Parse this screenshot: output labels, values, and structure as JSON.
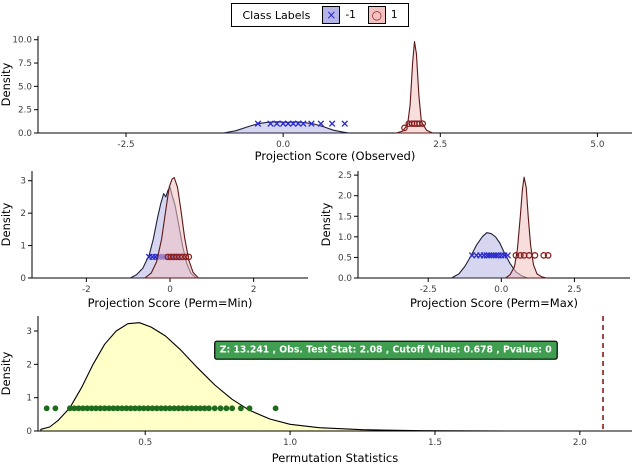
{
  "legend": {
    "title": "Class Labels",
    "items": [
      {
        "label": "-1",
        "fill": "#b4b4e6",
        "border": "#000000",
        "marker": "×",
        "marker_color": "#2929cc"
      },
      {
        "label": "1",
        "fill": "#f3c1c1",
        "border": "#000000",
        "marker": "○",
        "marker_color": "#8b2020"
      }
    ]
  },
  "chart_data": [
    {
      "id": "observed",
      "type": "area",
      "subtype": "density",
      "xlabel": "Projection Score (Observed)",
      "ylabel": "Density",
      "xlim": [
        -3.9,
        5.55
      ],
      "ylim": [
        0,
        10.4
      ],
      "xticks": [
        [
          -2.5,
          "-2.5"
        ],
        [
          0,
          "0.0"
        ],
        [
          2.5,
          "2.5"
        ],
        [
          5,
          "5.0"
        ]
      ],
      "yticks": [
        [
          0,
          "0.0"
        ],
        [
          2.5,
          "2.5"
        ],
        [
          5,
          "5.0"
        ],
        [
          7.5,
          "7.5"
        ],
        [
          10,
          "10.0"
        ]
      ],
      "series": [
        {
          "name": "-1",
          "fill": "#b4b4e6",
          "stroke": "#20203a",
          "marker": "x",
          "marker_color": "#2929cc",
          "curve": [
            [
              -0.95,
              0
            ],
            [
              -0.75,
              0.25
            ],
            [
              -0.55,
              0.7
            ],
            [
              -0.4,
              1.0
            ],
            [
              -0.25,
              1.15
            ],
            [
              -0.1,
              1.2
            ],
            [
              0.05,
              1.15
            ],
            [
              0.2,
              1.2
            ],
            [
              0.35,
              1.1
            ],
            [
              0.5,
              0.95
            ],
            [
              0.65,
              0.65
            ],
            [
              0.8,
              0.3
            ],
            [
              0.95,
              0.1
            ],
            [
              1.05,
              0
            ]
          ],
          "points": [
            [
              -0.4,
              1.0
            ],
            [
              -0.2,
              1.0
            ],
            [
              -0.1,
              1.0
            ],
            [
              0.0,
              1.0
            ],
            [
              0.08,
              1.0
            ],
            [
              0.16,
              1.0
            ],
            [
              0.24,
              1.0
            ],
            [
              0.32,
              1.0
            ],
            [
              0.45,
              1.0
            ],
            [
              0.6,
              1.0
            ],
            [
              0.78,
              1.0
            ],
            [
              0.98,
              1.0
            ]
          ]
        },
        {
          "name": "1",
          "fill": "#f3c1c1",
          "stroke": "#5c1616",
          "marker": "o",
          "marker_color": "#8b2020",
          "curve": [
            [
              1.8,
              0
            ],
            [
              1.9,
              0.2
            ],
            [
              1.98,
              0.9
            ],
            [
              2.02,
              3.0
            ],
            [
              2.06,
              7.5
            ],
            [
              2.09,
              9.8
            ],
            [
              2.12,
              8.5
            ],
            [
              2.16,
              4.0
            ],
            [
              2.2,
              1.2
            ],
            [
              2.28,
              0.3
            ],
            [
              2.38,
              0
            ]
          ],
          "points": [
            [
              1.93,
              0.55
            ],
            [
              2.0,
              1.0
            ],
            [
              2.05,
              1.0
            ],
            [
              2.09,
              1.0
            ],
            [
              2.13,
              1.0
            ],
            [
              2.17,
              1.0
            ],
            [
              2.22,
              1.0
            ]
          ]
        }
      ]
    },
    {
      "id": "perm_min",
      "type": "area",
      "subtype": "density",
      "xlabel": "Projection Score (Perm=Min)",
      "ylabel": "Density",
      "xlim": [
        -3.3,
        3.3
      ],
      "ylim": [
        0,
        3.3
      ],
      "xticks": [
        [
          -2,
          "-2"
        ],
        [
          0,
          "0"
        ],
        [
          2,
          "2"
        ]
      ],
      "yticks": [
        [
          0,
          "0"
        ],
        [
          1,
          "1"
        ],
        [
          2,
          "2"
        ],
        [
          3,
          "3"
        ]
      ],
      "series": [
        {
          "name": "-1",
          "fill": "#b4b4e6",
          "stroke": "#20203a",
          "marker": "x",
          "marker_color": "#2929cc",
          "curve": [
            [
              -0.95,
              0
            ],
            [
              -0.8,
              0.1
            ],
            [
              -0.65,
              0.3
            ],
            [
              -0.5,
              0.7
            ],
            [
              -0.4,
              1.2
            ],
            [
              -0.3,
              1.85
            ],
            [
              -0.22,
              2.3
            ],
            [
              -0.15,
              2.6
            ],
            [
              -0.1,
              2.5
            ],
            [
              -0.05,
              2.7
            ],
            [
              0,
              2.8
            ],
            [
              0.05,
              2.55
            ],
            [
              0.12,
              2.25
            ],
            [
              0.2,
              1.7
            ],
            [
              0.3,
              1.0
            ],
            [
              0.4,
              0.45
            ],
            [
              0.5,
              0.15
            ],
            [
              0.62,
              0
            ]
          ],
          "points": [
            [
              -0.5,
              0.65
            ],
            [
              -0.42,
              0.65
            ],
            [
              -0.35,
              0.65
            ],
            [
              -0.28,
              0.65
            ],
            [
              -0.22,
              0.65
            ],
            [
              -0.16,
              0.65
            ],
            [
              -0.1,
              0.65
            ],
            [
              -0.04,
              0.65
            ],
            [
              0.02,
              0.65
            ],
            [
              0.08,
              0.65
            ],
            [
              0.15,
              0.65
            ],
            [
              0.22,
              0.65
            ]
          ]
        },
        {
          "name": "1",
          "fill": "#f3c1c1",
          "stroke": "#5c1616",
          "marker": "o",
          "marker_color": "#8b2020",
          "curve": [
            [
              -0.6,
              0
            ],
            [
              -0.45,
              0.15
            ],
            [
              -0.32,
              0.5
            ],
            [
              -0.2,
              1.2
            ],
            [
              -0.1,
              2.1
            ],
            [
              -0.02,
              2.8
            ],
            [
              0.05,
              3.05
            ],
            [
              0.1,
              3.1
            ],
            [
              0.18,
              2.8
            ],
            [
              0.26,
              2.1
            ],
            [
              0.35,
              1.25
            ],
            [
              0.45,
              0.55
            ],
            [
              0.55,
              0.18
            ],
            [
              0.68,
              0
            ]
          ],
          "points": [
            [
              -0.05,
              0.65
            ],
            [
              0.02,
              0.65
            ],
            [
              0.09,
              0.65
            ],
            [
              0.16,
              0.65
            ],
            [
              0.23,
              0.65
            ],
            [
              0.3,
              0.65
            ],
            [
              0.38,
              0.65
            ],
            [
              0.45,
              0.65
            ]
          ]
        }
      ]
    },
    {
      "id": "perm_max",
      "type": "area",
      "subtype": "density",
      "xlabel": "Projection Score (Perm=Max)",
      "ylabel": "Density",
      "xlim": [
        -4.9,
        4.4
      ],
      "ylim": [
        0,
        2.6
      ],
      "xticks": [
        [
          -2.5,
          "-2.5"
        ],
        [
          0,
          "0.0"
        ],
        [
          2.5,
          "2.5"
        ]
      ],
      "yticks": [
        [
          0,
          "0.0"
        ],
        [
          0.5,
          "0.5"
        ],
        [
          1,
          "1.0"
        ],
        [
          1.5,
          "1.5"
        ],
        [
          2,
          "2.0"
        ],
        [
          2.5,
          "2.5"
        ]
      ],
      "series": [
        {
          "name": "-1",
          "fill": "#b4b4e6",
          "stroke": "#20203a",
          "marker": "x",
          "marker_color": "#2929cc",
          "curve": [
            [
              -1.7,
              0
            ],
            [
              -1.45,
              0.1
            ],
            [
              -1.25,
              0.28
            ],
            [
              -1.05,
              0.52
            ],
            [
              -0.85,
              0.8
            ],
            [
              -0.65,
              1.0
            ],
            [
              -0.5,
              1.1
            ],
            [
              -0.35,
              1.08
            ],
            [
              -0.2,
              1.0
            ],
            [
              -0.05,
              0.85
            ],
            [
              0.1,
              0.62
            ],
            [
              0.3,
              0.35
            ],
            [
              0.5,
              0.15
            ],
            [
              0.7,
              0.05
            ],
            [
              0.9,
              0
            ]
          ],
          "points": [
            [
              -1.0,
              0.55
            ],
            [
              -0.85,
              0.55
            ],
            [
              -0.72,
              0.55
            ],
            [
              -0.6,
              0.55
            ],
            [
              -0.5,
              0.55
            ],
            [
              -0.42,
              0.55
            ],
            [
              -0.34,
              0.55
            ],
            [
              -0.26,
              0.55
            ],
            [
              -0.18,
              0.55
            ],
            [
              -0.1,
              0.55
            ],
            [
              0.0,
              0.55
            ],
            [
              0.1,
              0.55
            ],
            [
              0.22,
              0.55
            ]
          ]
        },
        {
          "name": "1",
          "fill": "#f3c1c1",
          "stroke": "#5c1616",
          "marker": "o",
          "marker_color": "#8b2020",
          "curve": [
            [
              0.15,
              0
            ],
            [
              0.3,
              0.08
            ],
            [
              0.45,
              0.28
            ],
            [
              0.55,
              0.7
            ],
            [
              0.65,
              1.5
            ],
            [
              0.72,
              2.15
            ],
            [
              0.78,
              2.45
            ],
            [
              0.85,
              2.2
            ],
            [
              0.92,
              1.5
            ],
            [
              1.0,
              0.8
            ],
            [
              1.1,
              0.32
            ],
            [
              1.22,
              0.1
            ],
            [
              1.38,
              0.03
            ],
            [
              1.55,
              0
            ]
          ],
          "points": [
            [
              0.5,
              0.55
            ],
            [
              0.65,
              0.55
            ],
            [
              0.78,
              0.55
            ],
            [
              0.95,
              0.55
            ],
            [
              1.15,
              0.55
            ],
            [
              1.45,
              0.55
            ],
            [
              1.6,
              0.55
            ]
          ]
        }
      ]
    },
    {
      "id": "perm_stat",
      "type": "area",
      "subtype": "density",
      "xlabel": "Permutation Statistics",
      "ylabel": "Density",
      "xlim": [
        0.13,
        2.18
      ],
      "ylim": [
        0,
        3.45
      ],
      "xticks": [
        [
          0.5,
          "0.5"
        ],
        [
          1,
          "1.0"
        ],
        [
          1.5,
          "1.5"
        ],
        [
          2,
          "2.0"
        ]
      ],
      "yticks": [
        [
          0,
          "0"
        ],
        [
          1,
          "1"
        ],
        [
          2,
          "2"
        ],
        [
          3,
          "3"
        ]
      ],
      "series": [
        {
          "name": "permutation-density",
          "fill": "#ffffc2",
          "stroke": "#000000",
          "fill_opacity": 0.9,
          "marker": "dot",
          "marker_color": "#1e6b1e",
          "curve": [
            [
              0.14,
              0.05
            ],
            [
              0.17,
              0.12
            ],
            [
              0.2,
              0.32
            ],
            [
              0.24,
              0.7
            ],
            [
              0.28,
              1.3
            ],
            [
              0.32,
              2.0
            ],
            [
              0.36,
              2.6
            ],
            [
              0.4,
              3.0
            ],
            [
              0.44,
              3.22
            ],
            [
              0.48,
              3.25
            ],
            [
              0.52,
              3.12
            ],
            [
              0.57,
              2.85
            ],
            [
              0.62,
              2.45
            ],
            [
              0.68,
              1.9
            ],
            [
              0.74,
              1.38
            ],
            [
              0.8,
              0.95
            ],
            [
              0.86,
              0.62
            ],
            [
              0.93,
              0.36
            ],
            [
              1.0,
              0.2
            ],
            [
              1.1,
              0.1
            ],
            [
              1.25,
              0.04
            ],
            [
              1.45,
              0.01
            ],
            [
              1.75,
              0
            ]
          ],
          "points_x": [
            0.16,
            0.19,
            0.24,
            0.255,
            0.27,
            0.285,
            0.3,
            0.315,
            0.33,
            0.345,
            0.36,
            0.375,
            0.39,
            0.405,
            0.42,
            0.435,
            0.45,
            0.465,
            0.48,
            0.495,
            0.51,
            0.525,
            0.54,
            0.555,
            0.57,
            0.585,
            0.6,
            0.615,
            0.63,
            0.645,
            0.66,
            0.675,
            0.69,
            0.705,
            0.72,
            0.74,
            0.76,
            0.78,
            0.8,
            0.83,
            0.86,
            0.95
          ],
          "points_y": 0.68
        }
      ],
      "vline": {
        "x": 2.08,
        "color": "#8b1a1a",
        "style": "dashed"
      },
      "annotation": {
        "text": "Z: 13.241 , Obs. Test Stat: 2.08 , Cutoff Value: 0.678 , Pvalue: 0",
        "x": 1.33,
        "y": 2.35,
        "fill": "#3f9e4f",
        "text_color": "#ffffff",
        "border_color": "#000000"
      }
    }
  ]
}
